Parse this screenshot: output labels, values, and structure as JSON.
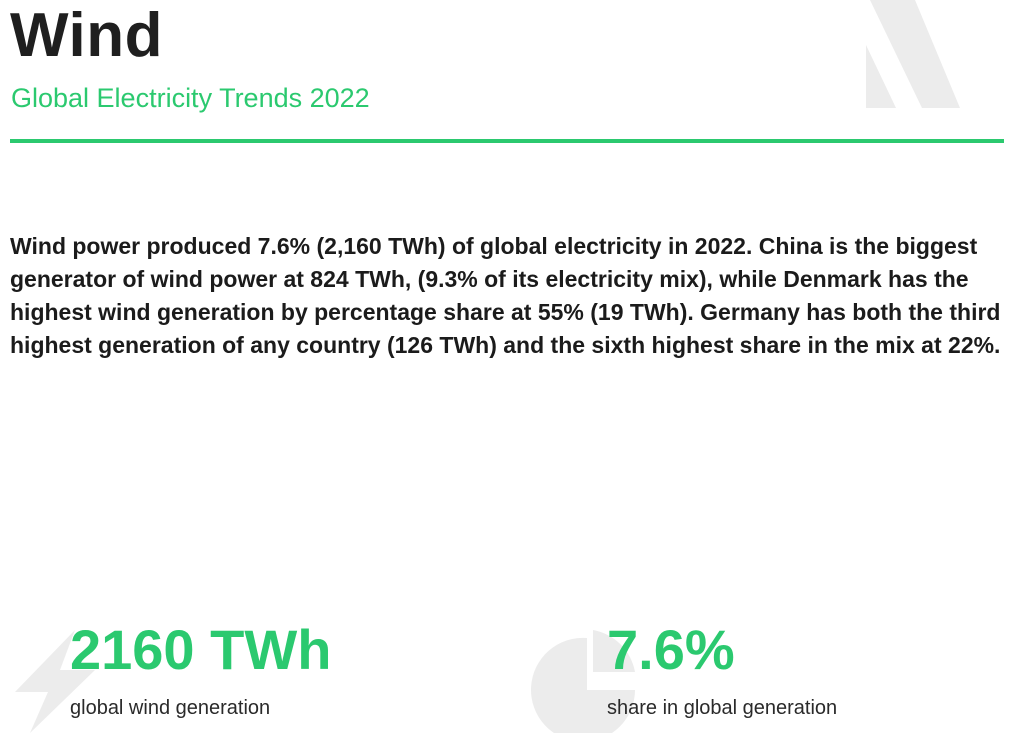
{
  "header": {
    "title": "Wind",
    "subtitle": "Global Electricity Trends 2022"
  },
  "summary": {
    "text": "Wind power produced 7.6% (2,160 TWh) of global electricity in 2022. China is the biggest generator of wind power at 824 TWh, (9.3% of its electricity mix), while Denmark has the highest wind generation by percentage share at 55% (19 TWh). Germany has both the third highest generation of any country (126 TWh) and the sixth highest share in the mix at 22%."
  },
  "stats": [
    {
      "value": "2160 TWh",
      "label": "global wind generation",
      "icon": "lightning-bolt-icon"
    },
    {
      "value": "7.6%",
      "label": "share in global generation",
      "icon": "pie-chart-icon"
    }
  ],
  "colors": {
    "accent": "#2bc96f",
    "text": "#1b1b1b",
    "decor": "#ececec"
  }
}
